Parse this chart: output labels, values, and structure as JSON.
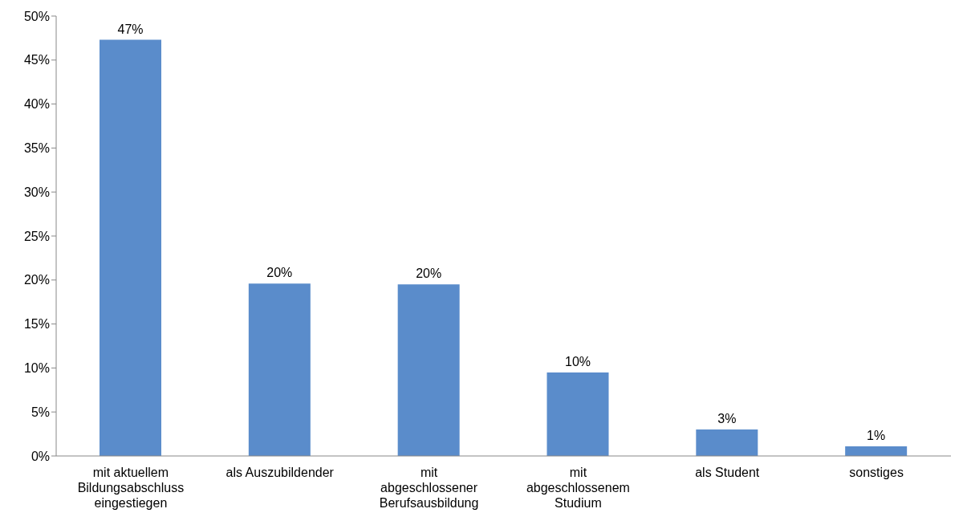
{
  "chart_data": {
    "type": "bar",
    "categories": [
      "mit aktuellem Bildungsabschluss eingestiegen",
      "als Auszubildender",
      "mit abgeschlossener Berufsausbildung",
      "mit abgeschlossenem Studium",
      "als Student",
      "sonstiges"
    ],
    "values": [
      47.3,
      19.6,
      19.5,
      9.5,
      3.0,
      1.1
    ],
    "value_labels": [
      "47%",
      "20%",
      "20%",
      "10%",
      "3%",
      "1%"
    ],
    "color": "#5a8ccb",
    "ylim": [
      0,
      50
    ],
    "yticks": [
      {
        "value": 0,
        "label": "0%"
      },
      {
        "value": 5,
        "label": "5%"
      },
      {
        "value": 10,
        "label": "10%"
      },
      {
        "value": 15,
        "label": "15%"
      },
      {
        "value": 20,
        "label": "20%"
      },
      {
        "value": 25,
        "label": "25%"
      },
      {
        "value": 30,
        "label": "30%"
      },
      {
        "value": 35,
        "label": "35%"
      },
      {
        "value": 40,
        "label": "40%"
      },
      {
        "value": 45,
        "label": "45%"
      },
      {
        "value": 50,
        "label": "50%"
      }
    ],
    "grid": false
  }
}
